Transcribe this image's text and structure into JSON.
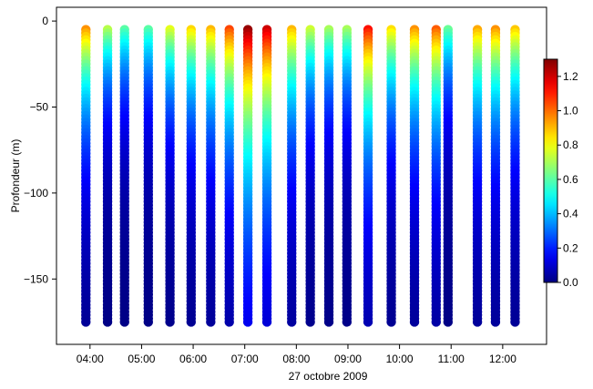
{
  "chart_data": {
    "type": "scatter",
    "xlabel": "27 octobre 2009",
    "ylabel": "Profondeur (m)",
    "x_tick_labels": [
      "04:00",
      "05:00",
      "06:00",
      "07:00",
      "08:00",
      "09:00",
      "10:00",
      "11:00",
      "12:00"
    ],
    "x_ticks_hours": [
      4,
      5,
      6,
      7,
      8,
      9,
      10,
      11,
      12
    ],
    "xlim_hours": [
      3.35,
      12.85
    ],
    "y_ticks": [
      0,
      -50,
      -100,
      -150
    ],
    "y_tick_labels": [
      "0",
      "−50",
      "−100",
      "−150"
    ],
    "ylim": [
      -188,
      8
    ],
    "depth_range": [
      -5,
      -175
    ],
    "colorbar": {
      "min": 0,
      "max": 1.3,
      "ticks": [
        0.0,
        0.2,
        0.4,
        0.6,
        0.8,
        1.0,
        1.2
      ],
      "tick_labels": [
        "0.0",
        "0.2",
        "0.4",
        "0.6",
        "0.8",
        "1.0",
        "1.2"
      ],
      "colormap": "jet"
    },
    "profiles": [
      {
        "time": 3.92,
        "surface_value": 0.95,
        "decay_m": 50
      },
      {
        "time": 4.34,
        "surface_value": 0.72,
        "decay_m": 38
      },
      {
        "time": 4.67,
        "surface_value": 0.6,
        "decay_m": 40
      },
      {
        "time": 5.13,
        "surface_value": 0.6,
        "decay_m": 40
      },
      {
        "time": 5.55,
        "surface_value": 0.78,
        "decay_m": 44
      },
      {
        "time": 5.96,
        "surface_value": 0.86,
        "decay_m": 48
      },
      {
        "time": 6.34,
        "surface_value": 0.9,
        "decay_m": 52
      },
      {
        "time": 6.7,
        "surface_value": 1.05,
        "decay_m": 58
      },
      {
        "time": 7.06,
        "surface_value": 1.27,
        "decay_m": 78
      },
      {
        "time": 7.43,
        "surface_value": 1.2,
        "decay_m": 72
      },
      {
        "time": 7.91,
        "surface_value": 0.9,
        "decay_m": 55
      },
      {
        "time": 8.27,
        "surface_value": 0.75,
        "decay_m": 45
      },
      {
        "time": 8.63,
        "surface_value": 0.7,
        "decay_m": 42
      },
      {
        "time": 8.98,
        "surface_value": 0.7,
        "decay_m": 42
      },
      {
        "time": 9.39,
        "surface_value": 1.12,
        "decay_m": 60
      },
      {
        "time": 9.84,
        "surface_value": 0.85,
        "decay_m": 48
      },
      {
        "time": 10.29,
        "surface_value": 0.95,
        "decay_m": 52
      },
      {
        "time": 10.71,
        "surface_value": 1.02,
        "decay_m": 56
      },
      {
        "time": 10.94,
        "surface_value": 0.62,
        "decay_m": 40
      },
      {
        "time": 11.51,
        "surface_value": 0.92,
        "decay_m": 52
      },
      {
        "time": 11.86,
        "surface_value": 0.95,
        "decay_m": 52
      },
      {
        "time": 12.24,
        "surface_value": 0.88,
        "decay_m": 50
      }
    ]
  }
}
